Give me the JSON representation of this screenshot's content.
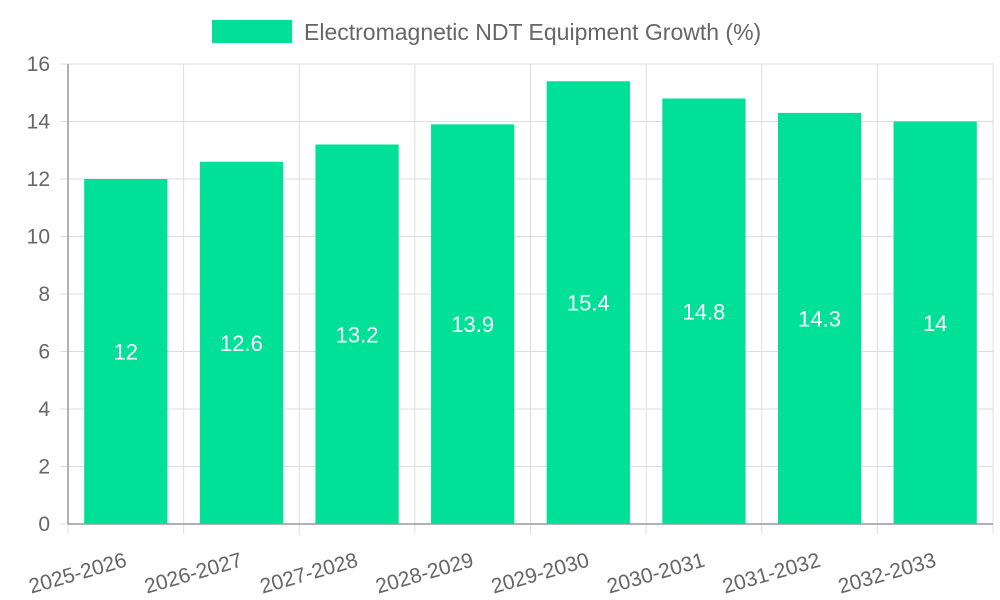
{
  "chart_data": {
    "type": "bar",
    "categories": [
      "2025-2026",
      "2026-2027",
      "2027-2028",
      "2028-2029",
      "2029-2030",
      "2030-2031",
      "2031-2032",
      "2032-2033"
    ],
    "series": [
      {
        "name": "Electromagnetic NDT Equipment Growth (%)",
        "values": [
          12,
          12.6,
          13.2,
          13.9,
          15.4,
          14.8,
          14.3,
          14
        ],
        "color": "#00e096"
      }
    ],
    "data_labels": [
      "12",
      "12.6",
      "13.2",
      "13.9",
      "15.4",
      "14.8",
      "14.3",
      "14"
    ],
    "title": "",
    "xlabel": "",
    "ylabel": "",
    "ylim": [
      0,
      16
    ],
    "yticks": [
      0,
      2,
      4,
      6,
      8,
      10,
      12,
      14,
      16
    ],
    "grid": true,
    "legend_position": "top-center"
  }
}
